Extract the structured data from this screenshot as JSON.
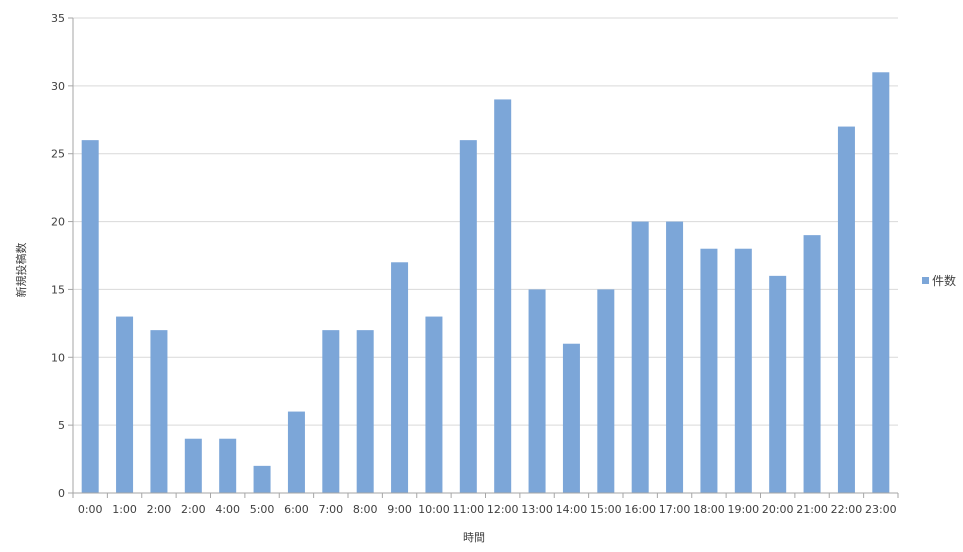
{
  "chart_data": {
    "type": "bar",
    "categories": [
      "0:00",
      "1:00",
      "2:00",
      "2:00",
      "4:00",
      "5:00",
      "6:00",
      "7:00",
      "8:00",
      "9:00",
      "10:00",
      "11:00",
      "12:00",
      "13:00",
      "14:00",
      "15:00",
      "16:00",
      "17:00",
      "18:00",
      "19:00",
      "20:00",
      "21:00",
      "22:00",
      "23:00"
    ],
    "series": [
      {
        "name": "件数",
        "values": [
          26,
          13,
          12,
          4,
          4,
          2,
          6,
          12,
          12,
          17,
          13,
          26,
          29,
          15,
          11,
          15,
          20,
          20,
          18,
          18,
          16,
          19,
          27,
          31
        ]
      }
    ],
    "title": "",
    "xlabel": "時間",
    "ylabel": "新規投稿数",
    "ylim": [
      0,
      35
    ],
    "yticks": [
      0,
      5,
      10,
      15,
      20,
      25,
      30,
      35
    ],
    "grid": true,
    "legend": "right",
    "colors": {
      "bar": "#7ca6d8",
      "grid": "#d9d9d9",
      "axis": "#a6a6a6"
    }
  }
}
